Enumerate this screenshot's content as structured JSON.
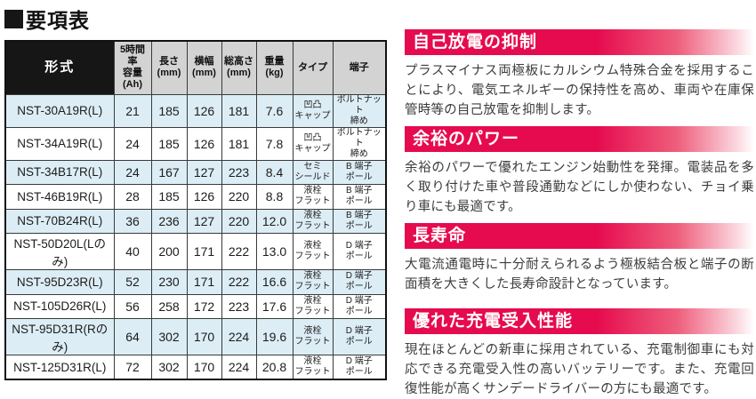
{
  "page": {
    "title": "要項表"
  },
  "colors": {
    "accent_red": "#e60b4e",
    "row_alt_blue": "#dcedf5",
    "header_gray": "#d3d3d3",
    "header_black": "#161616"
  },
  "table": {
    "columns": [
      {
        "key": "model",
        "label": "形式"
      },
      {
        "key": "capacity",
        "label": "5時間率\n容量\n(Ah)"
      },
      {
        "key": "length",
        "label": "長さ\n(mm)"
      },
      {
        "key": "width",
        "label": "横幅\n(mm)"
      },
      {
        "key": "height",
        "label": "総高さ\n(mm)"
      },
      {
        "key": "weight",
        "label": "重量\n(kg)"
      },
      {
        "key": "type",
        "label": "タイプ"
      },
      {
        "key": "terminal",
        "label": "端子"
      }
    ],
    "rows": [
      {
        "model": "NST-30A19R(L)",
        "capacity": "21",
        "length": "185",
        "width": "126",
        "height": "181",
        "weight": "7.6",
        "type": "凹凸\nキャップ",
        "terminal": "ボルトナット\n締め"
      },
      {
        "model": "NST-34A19R(L)",
        "capacity": "24",
        "length": "185",
        "width": "126",
        "height": "181",
        "weight": "7.8",
        "type": "凹凸\nキャップ",
        "terminal": "ボルトナット\n締め"
      },
      {
        "model": "NST-34B17R(L)",
        "capacity": "24",
        "length": "167",
        "width": "127",
        "height": "223",
        "weight": "8.4",
        "type": "セミ\nシールド",
        "terminal": "B 端子\nポール"
      },
      {
        "model": "NST-46B19R(L)",
        "capacity": "28",
        "length": "185",
        "width": "126",
        "height": "220",
        "weight": "8.8",
        "type": "液栓\nフラット",
        "terminal": "B 端子\nポール"
      },
      {
        "model": "NST-70B24R(L)",
        "capacity": "36",
        "length": "236",
        "width": "127",
        "height": "220",
        "weight": "12.0",
        "type": "液栓\nフラット",
        "terminal": "B 端子\nポール"
      },
      {
        "model": "NST-50D20L(Lのみ)",
        "capacity": "40",
        "length": "200",
        "width": "171",
        "height": "222",
        "weight": "13.0",
        "type": "液栓\nフラット",
        "terminal": "D 端子\nポール"
      },
      {
        "model": "NST-95D23R(L)",
        "capacity": "52",
        "length": "230",
        "width": "171",
        "height": "222",
        "weight": "16.6",
        "type": "液栓\nフラット",
        "terminal": "D 端子\nポール"
      },
      {
        "model": "NST-105D26R(L)",
        "capacity": "56",
        "length": "258",
        "width": "172",
        "height": "223",
        "weight": "17.6",
        "type": "液栓\nフラット",
        "terminal": "D 端子\nポール"
      },
      {
        "model": "NST-95D31R(Rのみ)",
        "capacity": "64",
        "length": "302",
        "width": "170",
        "height": "224",
        "weight": "19.6",
        "type": "液栓\nフラット",
        "terminal": "D 端子\nポール"
      },
      {
        "model": "NST-125D31R(L)",
        "capacity": "72",
        "length": "302",
        "width": "170",
        "height": "224",
        "weight": "20.8",
        "type": "液栓\nフラット",
        "terminal": "D 端子\nポール"
      }
    ]
  },
  "sections": [
    {
      "heading": "自己放電の抑制",
      "body": "プラスマイナス両極板にカルシウム特殊合金を採用することにより、電気エネルギーの保持性を高め、車両や在庫保管時等の自己放電を抑制します。"
    },
    {
      "heading": "余裕のパワー",
      "body": "余裕のパワーで優れたエンジン始動性を発揮。電装品を多く取り付けた車や普段通勤などにしか使わない、チョイ乗り車にも最適です。"
    },
    {
      "heading": "長寿命",
      "body": "大電流通電時に十分耐えられるよう極板結合板と端子の断面積を大きくした長寿命設計となっています。"
    },
    {
      "heading": "優れた充電受入性能",
      "body": "現在ほとんどの新車に採用されている、充電制御車にも対応できる充電受入性の高いバッテリーです。また、充電回復性能が高くサンデードライバーの方にも最適です。"
    }
  ]
}
